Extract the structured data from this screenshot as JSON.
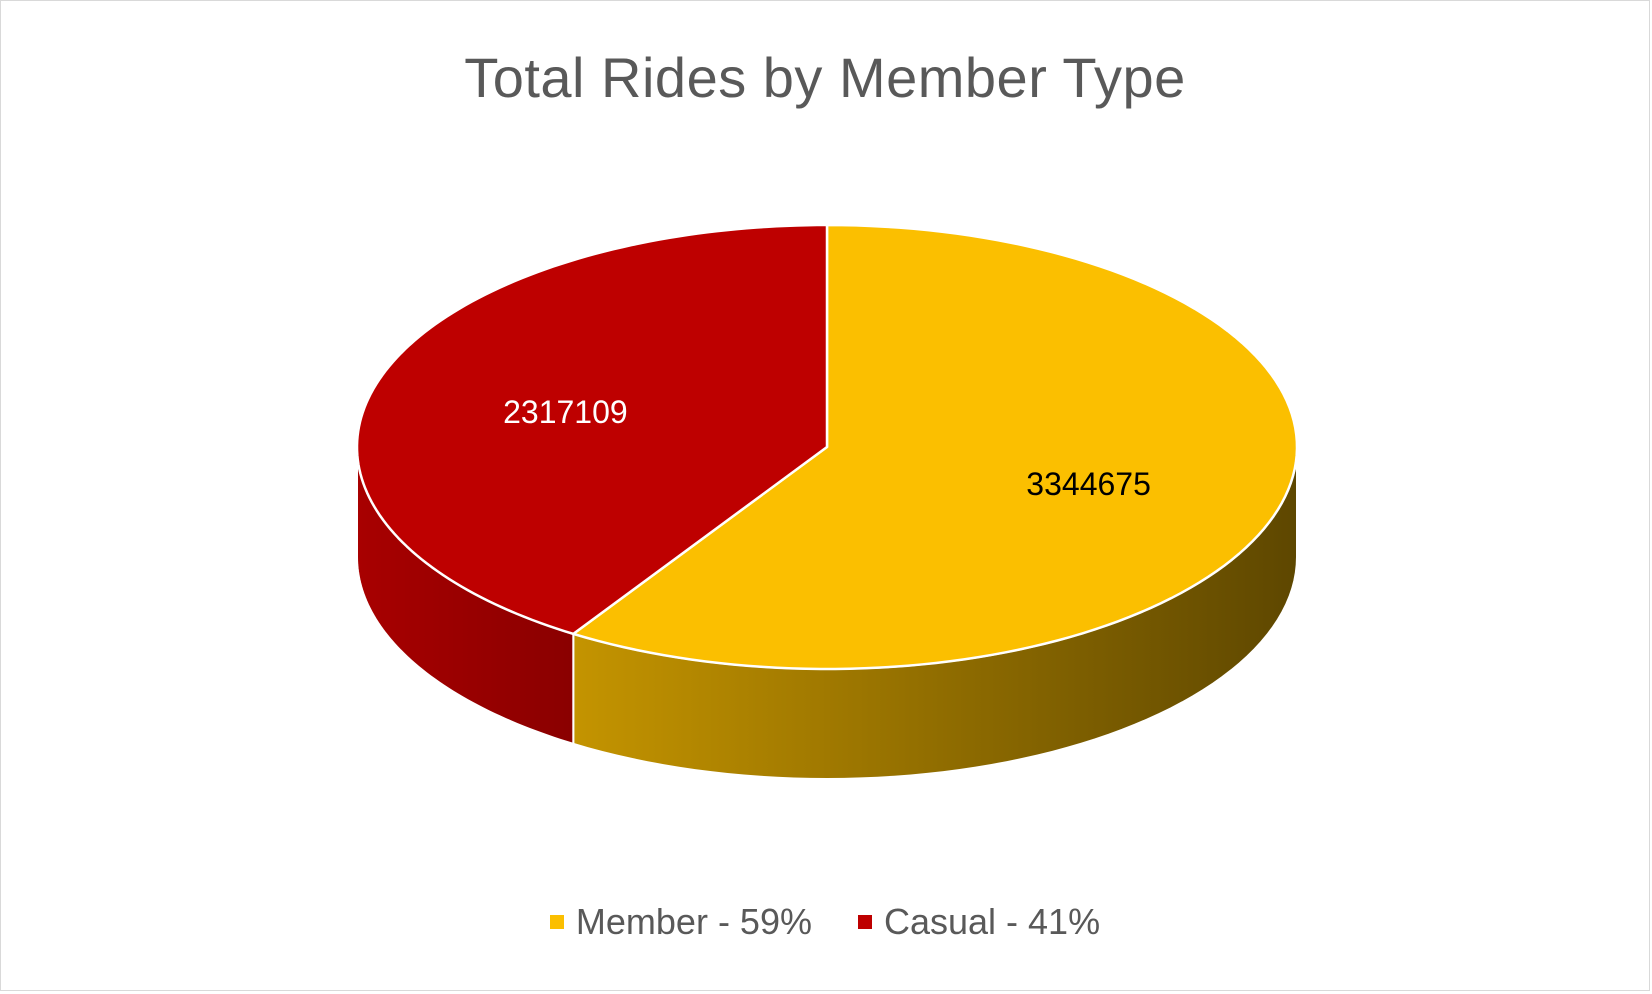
{
  "chart_data": {
    "type": "pie",
    "title": "Total Rides by Member Type",
    "categories": [
      "Member",
      "Casual"
    ],
    "values": [
      3344675,
      2317109
    ],
    "data_labels": [
      "3344675",
      "2317109"
    ],
    "legend_labels": [
      "Member - 59%",
      "Casual - 41%"
    ],
    "colors": [
      "#FBBF00",
      "#BE0000"
    ],
    "side_colors": [
      [
        "#C49400",
        "#5E4700"
      ],
      [
        "#A80000",
        "#8A0000"
      ]
    ],
    "label_colors": [
      "#000000",
      "#ffffff"
    ],
    "style": "3d",
    "start_angle_deg": -90,
    "legend_position": "bottom"
  }
}
